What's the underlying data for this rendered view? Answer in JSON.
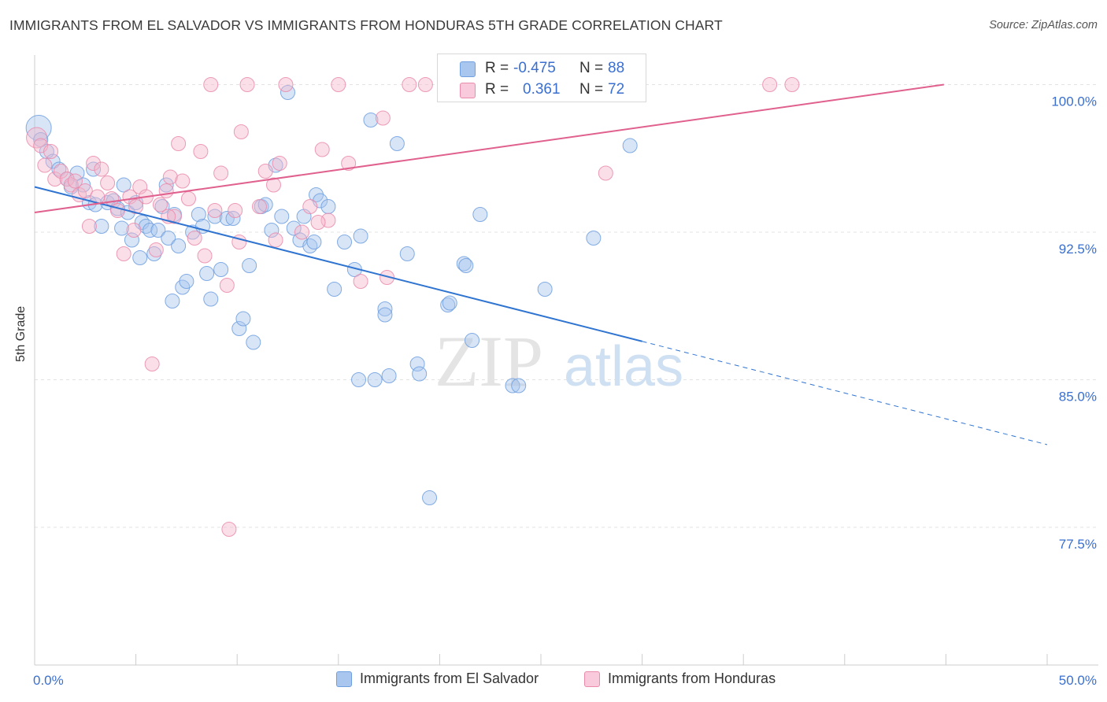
{
  "title": "IMMIGRANTS FROM EL SALVADOR VS IMMIGRANTS FROM HONDURAS 5TH GRADE CORRELATION CHART",
  "source": "Source: ZipAtlas.com",
  "watermark": {
    "zip": "ZIP",
    "atlas": "atlas"
  },
  "stats": {
    "r_label": "R =",
    "n_label": "N =",
    "el_salvador": {
      "r": "-0.475",
      "n": "88"
    },
    "honduras": {
      "r": "0.361",
      "n": "72"
    }
  },
  "legend": {
    "el_salvador": "Immigrants from El Salvador",
    "honduras": "Immigrants from Honduras"
  },
  "colors": {
    "blue_fill": "#a9c6ee",
    "blue_stroke": "#6f9fdf",
    "blue_line": "#2f74d0",
    "pink_fill": "#f5b8cc",
    "pink_stroke": "#ea8bab",
    "pink_line": "#e0608e",
    "tick_label": "#3a6fcf",
    "grid": "#e3e3e3"
  },
  "chart_data": {
    "type": "scatter",
    "xlabel": "",
    "ylabel": "5th Grade",
    "xlim": [
      0,
      50
    ],
    "ylim": [
      70.5,
      101.5
    ],
    "x_tick_labels": [
      "0.0%",
      "50.0%"
    ],
    "y_ticks": [
      77.5,
      85.0,
      92.5,
      100.0
    ],
    "y_tick_labels": [
      "77.5%",
      "85.0%",
      "92.5%",
      "100.0%"
    ],
    "grid": true,
    "series": [
      {
        "name": "Immigrants from El Salvador",
        "color": "#6f9fdf",
        "points": [
          [
            0.2,
            97.8
          ],
          [
            0.3,
            97.2
          ],
          [
            0.6,
            96.6
          ],
          [
            0.9,
            96.1
          ],
          [
            1.2,
            95.7
          ],
          [
            1.6,
            95.2
          ],
          [
            1.8,
            94.8
          ],
          [
            2.1,
            95.5
          ],
          [
            2.4,
            94.9
          ],
          [
            2.7,
            94.0
          ],
          [
            2.9,
            95.7
          ],
          [
            3.0,
            93.9
          ],
          [
            3.3,
            92.8
          ],
          [
            3.6,
            94.0
          ],
          [
            3.9,
            94.1
          ],
          [
            4.1,
            93.7
          ],
          [
            4.3,
            92.7
          ],
          [
            4.4,
            94.9
          ],
          [
            4.6,
            93.5
          ],
          [
            4.8,
            92.1
          ],
          [
            5.0,
            94.0
          ],
          [
            5.2,
            91.2
          ],
          [
            5.3,
            93.0
          ],
          [
            5.5,
            92.8
          ],
          [
            5.7,
            92.6
          ],
          [
            5.9,
            91.4
          ],
          [
            6.1,
            92.6
          ],
          [
            6.3,
            93.8
          ],
          [
            6.5,
            94.9
          ],
          [
            6.6,
            92.2
          ],
          [
            6.8,
            89.0
          ],
          [
            6.9,
            93.4
          ],
          [
            7.1,
            91.8
          ],
          [
            7.3,
            89.7
          ],
          [
            7.5,
            90.0
          ],
          [
            7.8,
            92.5
          ],
          [
            8.1,
            93.4
          ],
          [
            8.3,
            92.8
          ],
          [
            8.5,
            90.4
          ],
          [
            8.7,
            89.1
          ],
          [
            8.9,
            93.3
          ],
          [
            9.2,
            90.6
          ],
          [
            9.5,
            93.2
          ],
          [
            9.8,
            93.2
          ],
          [
            10.1,
            87.6
          ],
          [
            10.3,
            88.1
          ],
          [
            10.6,
            90.8
          ],
          [
            10.8,
            86.9
          ],
          [
            11.2,
            93.8
          ],
          [
            11.4,
            93.9
          ],
          [
            11.7,
            92.6
          ],
          [
            11.9,
            95.9
          ],
          [
            12.2,
            93.3
          ],
          [
            12.5,
            99.6
          ],
          [
            12.8,
            92.7
          ],
          [
            13.1,
            92.1
          ],
          [
            13.3,
            93.3
          ],
          [
            13.6,
            91.8
          ],
          [
            13.9,
            94.4
          ],
          [
            14.1,
            94.1
          ],
          [
            14.8,
            89.6
          ],
          [
            15.3,
            92.0
          ],
          [
            15.8,
            90.6
          ],
          [
            16.1,
            92.3
          ],
          [
            16.6,
            98.2
          ],
          [
            16.8,
            85.0
          ],
          [
            17.3,
            88.6
          ],
          [
            17.3,
            88.3
          ],
          [
            17.9,
            97.0
          ],
          [
            18.4,
            91.4
          ],
          [
            18.9,
            85.8
          ],
          [
            19.0,
            85.3
          ],
          [
            19.5,
            79.0
          ],
          [
            20.4,
            88.8
          ],
          [
            21.2,
            90.9
          ],
          [
            21.3,
            90.8
          ],
          [
            21.6,
            87.0
          ],
          [
            22.0,
            93.4
          ],
          [
            23.6,
            84.7
          ],
          [
            23.9,
            84.7
          ],
          [
            25.2,
            89.6
          ],
          [
            27.6,
            92.2
          ],
          [
            29.4,
            96.9
          ],
          [
            16.0,
            85.0
          ],
          [
            17.5,
            85.2
          ],
          [
            20.5,
            88.9
          ],
          [
            14.5,
            93.8
          ],
          [
            13.8,
            92.0
          ]
        ]
      },
      {
        "name": "Immigrants from Honduras",
        "color": "#ea8bab",
        "points": [
          [
            0.1,
            97.3
          ],
          [
            0.3,
            96.9
          ],
          [
            0.5,
            95.9
          ],
          [
            0.8,
            96.6
          ],
          [
            1.0,
            95.2
          ],
          [
            1.3,
            95.6
          ],
          [
            1.6,
            95.2
          ],
          [
            1.8,
            94.9
          ],
          [
            2.0,
            95.1
          ],
          [
            2.2,
            94.4
          ],
          [
            2.5,
            94.6
          ],
          [
            2.7,
            92.8
          ],
          [
            2.9,
            96.0
          ],
          [
            3.1,
            94.3
          ],
          [
            3.3,
            95.7
          ],
          [
            3.6,
            95.0
          ],
          [
            3.8,
            94.2
          ],
          [
            4.1,
            93.6
          ],
          [
            4.4,
            91.4
          ],
          [
            4.7,
            94.3
          ],
          [
            5.0,
            93.8
          ],
          [
            5.2,
            94.8
          ],
          [
            5.5,
            94.3
          ],
          [
            5.8,
            85.8
          ],
          [
            6.0,
            91.6
          ],
          [
            6.2,
            93.9
          ],
          [
            6.5,
            94.6
          ],
          [
            6.7,
            95.3
          ],
          [
            6.9,
            93.3
          ],
          [
            7.1,
            97.0
          ],
          [
            7.3,
            95.1
          ],
          [
            7.6,
            94.2
          ],
          [
            7.9,
            92.2
          ],
          [
            8.2,
            96.6
          ],
          [
            8.4,
            91.3
          ],
          [
            8.7,
            100.0
          ],
          [
            8.9,
            93.6
          ],
          [
            9.2,
            95.5
          ],
          [
            9.5,
            89.8
          ],
          [
            9.9,
            93.6
          ],
          [
            10.2,
            97.6
          ],
          [
            10.5,
            100.0
          ],
          [
            11.1,
            93.8
          ],
          [
            11.4,
            95.6
          ],
          [
            11.8,
            94.9
          ],
          [
            12.1,
            96.0
          ],
          [
            12.4,
            100.0
          ],
          [
            13.2,
            92.5
          ],
          [
            13.6,
            93.8
          ],
          [
            14.2,
            96.7
          ],
          [
            14.5,
            93.1
          ],
          [
            15.0,
            100.0
          ],
          [
            15.5,
            96.0
          ],
          [
            16.1,
            90.0
          ],
          [
            17.2,
            98.3
          ],
          [
            17.4,
            90.2
          ],
          [
            18.5,
            100.0
          ],
          [
            19.3,
            100.0
          ],
          [
            21.2,
            100.0
          ],
          [
            22.7,
            100.0
          ],
          [
            24.1,
            100.0
          ],
          [
            25.8,
            100.0
          ],
          [
            28.1,
            100.0
          ],
          [
            28.2,
            95.5
          ],
          [
            36.3,
            100.0
          ],
          [
            37.4,
            100.0
          ],
          [
            9.6,
            77.4
          ],
          [
            14.0,
            93.0
          ],
          [
            11.9,
            92.1
          ],
          [
            10.1,
            92.0
          ],
          [
            6.6,
            93.3
          ],
          [
            4.9,
            92.6
          ]
        ]
      }
    ],
    "trend_lines": [
      {
        "series": "Immigrants from El Salvador",
        "solid_x": [
          0,
          30
        ],
        "y_at": [
          94.8,
          86.95
        ],
        "dashed_x": [
          30,
          50
        ],
        "dashed_y": [
          86.95,
          81.7
        ]
      },
      {
        "series": "Immigrants from Honduras",
        "solid_x": [
          0,
          44.9
        ],
        "y_at": [
          93.5,
          100.0
        ]
      }
    ]
  }
}
